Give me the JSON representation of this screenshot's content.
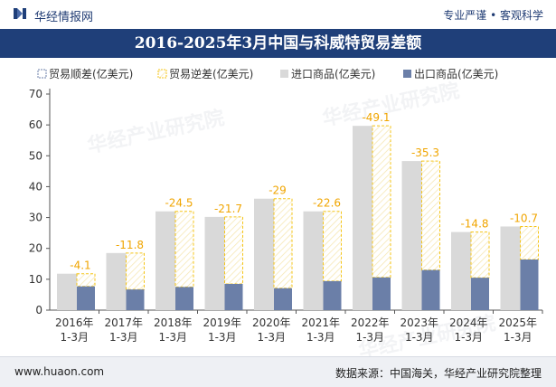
{
  "header": {
    "brand": "华经情报网",
    "tagline": "专业严谨 • 客观科学",
    "title": "2016-2025年3月中国与科威特贸易差额"
  },
  "footer": {
    "site": "www.huaon.com",
    "source": "数据来源：中国海关，华经产业研究院整理"
  },
  "watermarks": [
    "华经产业研究院",
    "华经产业研究院",
    "华经产业研究院"
  ],
  "colors": {
    "title_bg": "#1f3f79",
    "import": "#d9d9d9",
    "export": "#6b7fa8",
    "deficit_border": "#f5c518",
    "label": "#f0a500"
  },
  "chart_data": {
    "type": "bar",
    "categories": [
      [
        "2016年",
        "1-3月"
      ],
      [
        "2017年",
        "1-3月"
      ],
      [
        "2018年",
        "1-3月"
      ],
      [
        "2019年",
        "1-3月"
      ],
      [
        "2020年",
        "1-3月"
      ],
      [
        "2021年",
        "1-3月"
      ],
      [
        "2022年",
        "1-3月"
      ],
      [
        "2023年",
        "1-3月"
      ],
      [
        "2024年",
        "1-3月"
      ],
      [
        "2025年",
        "1-3月"
      ]
    ],
    "legend": [
      "贸易顺差(亿美元)",
      "贸易逆差(亿美元)",
      "进口商品(亿美元)",
      "出口商品(亿美元)"
    ],
    "legend_position": "top",
    "series": [
      {
        "name": "进口商品(亿美元)",
        "values": [
          11.8,
          18.5,
          32.0,
          30.2,
          36.1,
          32.0,
          59.7,
          48.3,
          25.3,
          27.1
        ]
      },
      {
        "name": "出口商品(亿美元)",
        "values": [
          7.7,
          6.7,
          7.5,
          8.5,
          7.1,
          9.4,
          10.6,
          13.0,
          10.5,
          16.4
        ]
      },
      {
        "name": "贸易逆差(亿美元)",
        "values": [
          -4.1,
          -11.8,
          -24.5,
          -21.7,
          -29,
          -22.6,
          -49.1,
          -35.3,
          -14.8,
          -10.7
        ]
      }
    ],
    "yticks": [
      0,
      10,
      20,
      30,
      40,
      50,
      60,
      70
    ],
    "ylim": [
      0,
      70
    ],
    "grid": false
  }
}
